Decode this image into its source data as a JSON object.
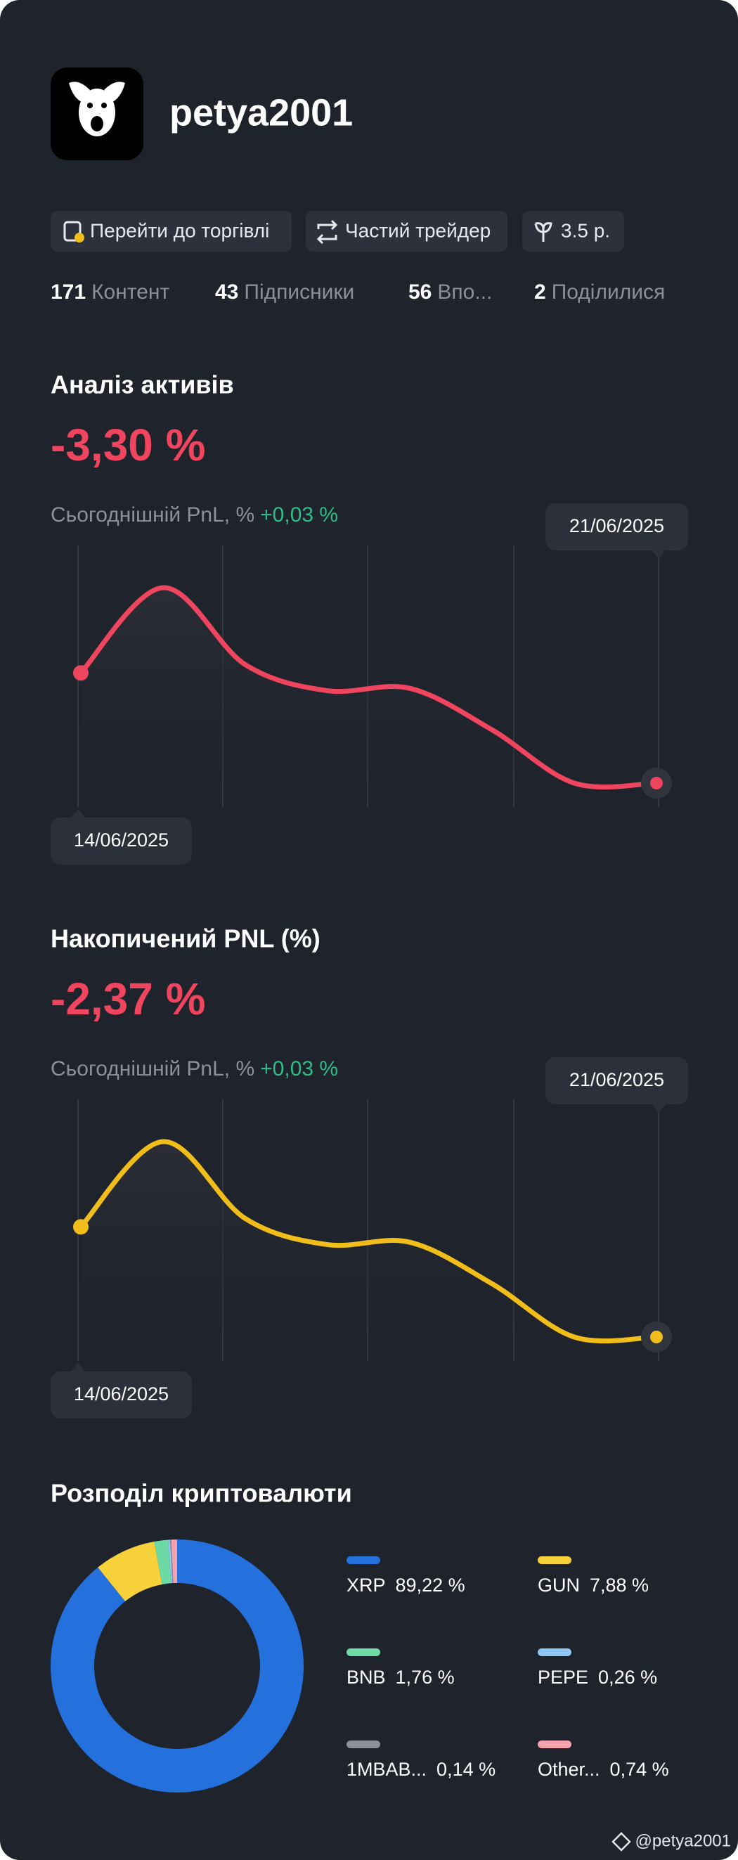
{
  "profile": {
    "username": "petya2001"
  },
  "buttons": [
    "Перейти до торгівлі",
    "Частий трейдер",
    "3.5 р."
  ],
  "stats": [
    {
      "count": 171,
      "label": "Контент"
    },
    {
      "count": 43,
      "label": "Підписники"
    },
    {
      "count": 56,
      "label": "Впо..."
    },
    {
      "count": 2,
      "label": "Поділилися"
    }
  ],
  "chart_data": [
    {
      "type": "line",
      "title": "Аналіз активів",
      "headline": "-3,30 %",
      "subtitle": "Сьогоднішній PnL, %",
      "subtitle_change": "+0,03 %",
      "categories": [
        "14/06/2025",
        null,
        null,
        null,
        null,
        null,
        null,
        "21/06/2025"
      ],
      "values": [
        1.33,
        2.05,
        1.4,
        1.18,
        1.2,
        0.85,
        0.4,
        0.4
      ],
      "color": "#f0455f"
    },
    {
      "type": "line",
      "title": "Накопичений PNL (%)",
      "headline": "-2,37 %",
      "subtitle": "Сьогоднішній PnL, %",
      "subtitle_change": "+0,03 %",
      "categories": [
        "14/06/2025",
        null,
        null,
        null,
        null,
        null,
        null,
        "21/06/2025"
      ],
      "values": [
        1.33,
        2.05,
        1.4,
        1.18,
        1.2,
        0.85,
        0.4,
        0.4
      ],
      "color": "#f1bd1a"
    },
    {
      "type": "pie",
      "title": "Розподіл криптовалюти",
      "categories": [
        "XRP",
        "GUN",
        "BNB",
        "PEPE",
        "1MBAB...",
        "Other..."
      ],
      "values": [
        89.22,
        7.88,
        1.76,
        0.26,
        0.14,
        0.74
      ],
      "value_labels": [
        "89,22 %",
        "7,88 %",
        "1,76 %",
        "0,26 %",
        "0,14 %",
        "0,74 %"
      ],
      "colors": [
        "#2470dc",
        "#f7d13a",
        "#6dd9a4",
        "#8fc6f7",
        "#8b909a",
        "#f4a3ae"
      ]
    }
  ],
  "watermark": "@petya2001"
}
